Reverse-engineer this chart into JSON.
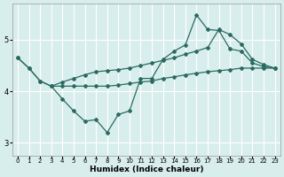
{
  "xlabel": "Humidex (Indice chaleur)",
  "xlim": [
    -0.5,
    23.5
  ],
  "ylim": [
    2.75,
    5.7
  ],
  "yticks": [
    3,
    4,
    5
  ],
  "xticks": [
    0,
    1,
    2,
    3,
    4,
    5,
    6,
    7,
    8,
    9,
    10,
    11,
    12,
    13,
    14,
    15,
    16,
    17,
    18,
    19,
    20,
    21,
    22,
    23
  ],
  "line_color": "#2a6b60",
  "bg_color": "#d8eeed",
  "grid_color": "#ffffff",
  "lines": [
    {
      "x": [
        0,
        1,
        2,
        3,
        4,
        5,
        6,
        7,
        8,
        9,
        10,
        11,
        12,
        13,
        14,
        15,
        16,
        17,
        18,
        19,
        20,
        21,
        22,
        23
      ],
      "y": [
        4.65,
        4.45,
        4.2,
        4.1,
        3.85,
        3.62,
        3.42,
        3.45,
        3.2,
        3.55,
        3.62,
        4.25,
        4.25,
        4.62,
        4.78,
        4.9,
        5.48,
        5.2,
        5.18,
        4.82,
        4.78,
        4.55,
        4.48,
        4.45
      ]
    },
    {
      "x": [
        3,
        4,
        5,
        6,
        7,
        8,
        9,
        10,
        11,
        12,
        13,
        14,
        15,
        16,
        17,
        18,
        19,
        20,
        21,
        22,
        23
      ],
      "y": [
        4.1,
        4.18,
        4.25,
        4.32,
        4.38,
        4.4,
        4.42,
        4.45,
        4.5,
        4.55,
        4.6,
        4.65,
        4.72,
        4.78,
        4.85,
        5.2,
        5.1,
        4.92,
        4.62,
        4.52,
        4.45
      ]
    },
    {
      "x": [
        0,
        1,
        2,
        3,
        4,
        5,
        6,
        7,
        8,
        9,
        10,
        11,
        12,
        13,
        14,
        15,
        16,
        17,
        18,
        19,
        20,
        21,
        22,
        23
      ],
      "y": [
        4.65,
        4.45,
        4.2,
        4.1,
        4.1,
        4.1,
        4.1,
        4.1,
        4.1,
        4.12,
        4.15,
        4.18,
        4.2,
        4.25,
        4.28,
        4.32,
        4.35,
        4.38,
        4.4,
        4.42,
        4.45,
        4.45,
        4.45,
        4.45
      ]
    }
  ]
}
